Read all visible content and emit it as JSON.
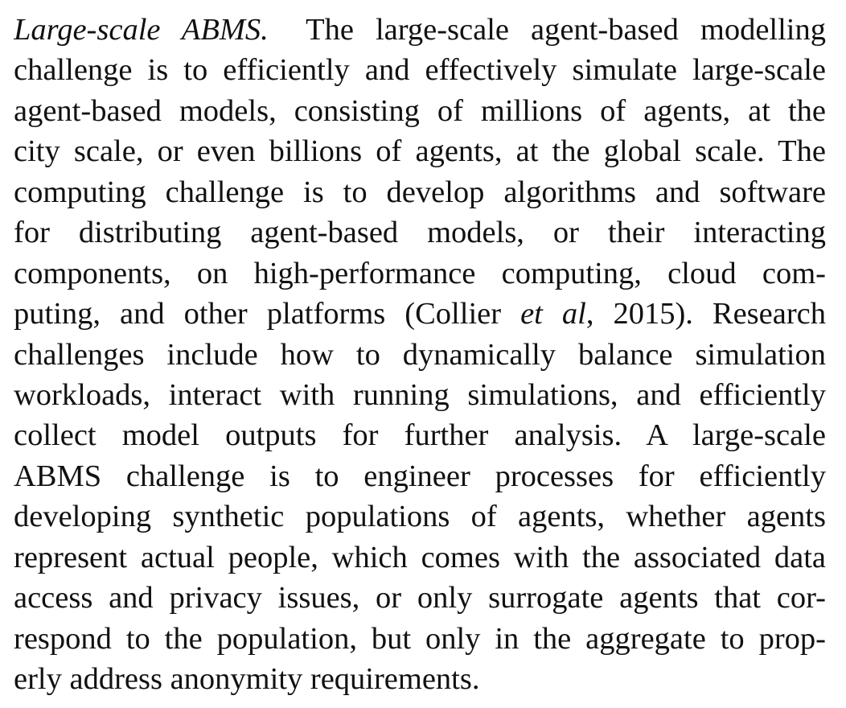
{
  "paragraph": {
    "heading": "Large-scale ABMS.",
    "lines": [
      {
        "after_heading": "The large-scale agent-based modelling"
      },
      {
        "text": "challenge is to efficiently and effectively simulate large-scale"
      },
      {
        "text": "agent-based models, consisting of millions of agents, at the"
      },
      {
        "text": "city scale, or even billions of agents, at the global scale. The"
      },
      {
        "text": "computing challenge is to develop algorithms and software"
      },
      {
        "text": "for distributing agent-based models, or their interacting"
      },
      {
        "text": "components, on high-performance computing, cloud com-"
      },
      {
        "before_italic": "puting, and other platforms (Collier ",
        "italic": "et al",
        "after_italic": ", 2015). Research"
      },
      {
        "text": "challenges include how to dynamically balance simulation"
      },
      {
        "text": "workloads, interact with running simulations, and efficiently"
      },
      {
        "text": "collect model outputs for further analysis. A large-scale"
      },
      {
        "text": "ABMS challenge is to engineer processes for efficiently"
      },
      {
        "text": "developing synthetic populations of agents, whether agents"
      },
      {
        "text": "represent actual people, which comes with the associated data"
      },
      {
        "text": "access and privacy issues, or only surrogate agents that cor-"
      },
      {
        "text": "respond to the population, but only in the aggregate to prop-"
      },
      {
        "text": "erly address anonymity requirements."
      }
    ]
  }
}
